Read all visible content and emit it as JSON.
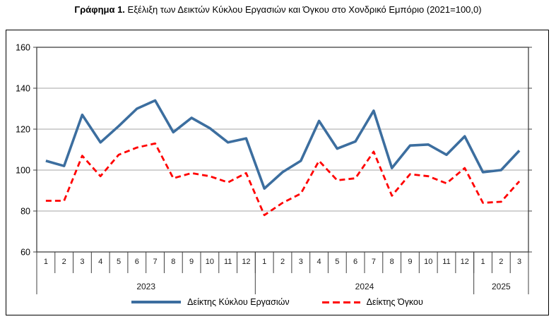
{
  "title": {
    "prefix": "Γράφημα 1.",
    "rest": "Εξέλιξη των Δεικτών Κύκλου Εργασιών και Όγκου στο Χονδρικό Εμπόριο (2021=100,0)"
  },
  "chart_data": {
    "type": "line",
    "title": "Γράφημα 1. Εξέλιξη των Δεικτών Κύκλου Εργασιών και Όγκου στο Χονδρικό Εμπόριο (2021=100,0)",
    "ylim": [
      60,
      160
    ],
    "yticks": [
      60,
      80,
      100,
      120,
      140,
      160
    ],
    "grid": true,
    "legend_position": "bottom",
    "colors": {
      "turnover_line": "#3C6E9F",
      "volume_line": "#FF0000",
      "gridline": "#A6A6A6",
      "axis": "#404040"
    },
    "year_groups": [
      {
        "label": "2023",
        "months": [
          "1",
          "2",
          "3",
          "4",
          "5",
          "6",
          "7",
          "8",
          "9",
          "10",
          "11",
          "12"
        ]
      },
      {
        "label": "2024",
        "months": [
          "1",
          "2",
          "3",
          "4",
          "5",
          "6",
          "7",
          "8",
          "9",
          "10",
          "11",
          "12"
        ]
      },
      {
        "label": "2025",
        "months": [
          "1",
          "2",
          "3"
        ]
      }
    ],
    "series": [
      {
        "name": "Δείκτης Κύκλου Εργασιών",
        "color": "#3C6E9F",
        "line_style": "solid",
        "values": [
          104.5,
          102,
          127,
          113.5,
          121.5,
          130,
          134,
          118.5,
          125.5,
          120.5,
          113.5,
          115.5,
          91,
          99,
          104.5,
          124,
          110.5,
          114,
          129,
          101,
          112,
          112.5,
          107.5,
          116.5,
          99,
          100,
          109.5
        ]
      },
      {
        "name": "Δείκτης Όγκου",
        "color": "#FF0000",
        "line_style": "dashed",
        "values": [
          85,
          85,
          107,
          97,
          107.5,
          111,
          113,
          96,
          98.5,
          97,
          94,
          98.5,
          78,
          84,
          88.5,
          104.5,
          95,
          96,
          109,
          87.5,
          98,
          97,
          93.5,
          101,
          84,
          84.5,
          94.5
        ]
      }
    ]
  }
}
